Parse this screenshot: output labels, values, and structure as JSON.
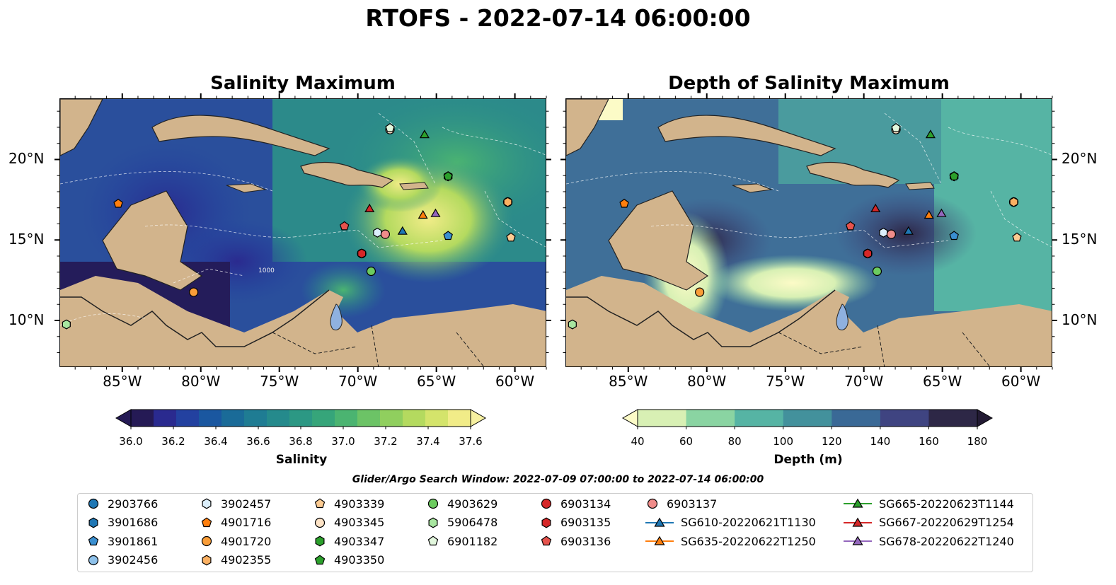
{
  "title": "RTOFS - 2022-07-14 06:00:00",
  "panels": [
    {
      "title": "Salinity Maximum"
    },
    {
      "title": "Depth of Salinity Maximum"
    }
  ],
  "axes": {
    "lon_ticks": [
      "85°W",
      "80°W",
      "75°W",
      "70°W",
      "65°W",
      "60°W"
    ],
    "lat_ticks": [
      "20°N",
      "15°N",
      "10°N"
    ],
    "contour_label": "1000"
  },
  "colorbars": {
    "salinity": {
      "label": "Salinity",
      "ticks": [
        "36.0",
        "36.2",
        "36.4",
        "36.6",
        "36.8",
        "37.0",
        "37.2",
        "37.4",
        "37.6"
      ],
      "colors": [
        "#251a55",
        "#2a2a8f",
        "#2341a0",
        "#1a57a0",
        "#1a6b98",
        "#1f7c93",
        "#258a8c",
        "#2c9884",
        "#36a57a",
        "#4bb471",
        "#6cc366",
        "#90cf5e",
        "#b4da5f",
        "#d4e46b",
        "#f1ec88"
      ],
      "extend_low": "#251a55",
      "extend_high": "#f6f0a0"
    },
    "depth": {
      "label": "Depth (m)",
      "ticks": [
        "40",
        "60",
        "80",
        "100",
        "120",
        "140",
        "160",
        "180"
      ],
      "colors": [
        "#d8f0b4",
        "#8ad4a2",
        "#56b4a4",
        "#43919c",
        "#3a6996",
        "#3f4481",
        "#2d2746"
      ],
      "extend_low": "#fcfbc7",
      "extend_high": "#221a33"
    }
  },
  "search_window": "Glider/Argo Search Window: 2022-07-09 07:00:00 to 2022-07-14 06:00:00",
  "legend": [
    {
      "label": "2903766",
      "color": "#1f77b4",
      "marker": "circle"
    },
    {
      "label": "3901686",
      "color": "#1f77b4",
      "marker": "hexagon"
    },
    {
      "label": "3901861",
      "color": "#3a8fd0",
      "marker": "pentagon"
    },
    {
      "label": "3902456",
      "color": "#8ec1ea",
      "marker": "circle"
    },
    {
      "label": "3902457",
      "color": "#dbeefb",
      "marker": "hexagon"
    },
    {
      "label": "4901716",
      "color": "#ff7f0e",
      "marker": "pentagon"
    },
    {
      "label": "4901720",
      "color": "#f99d38",
      "marker": "circle"
    },
    {
      "label": "4902355",
      "color": "#fbb062",
      "marker": "hexagon"
    },
    {
      "label": "4903339",
      "color": "#fccb92",
      "marker": "pentagon"
    },
    {
      "label": "4903345",
      "color": "#fde3c6",
      "marker": "circle"
    },
    {
      "label": "4903347",
      "color": "#2ca02c",
      "marker": "hexagon"
    },
    {
      "label": "4903350",
      "color": "#2ca02c",
      "marker": "pentagon"
    },
    {
      "label": "4903629",
      "color": "#6ccb5f",
      "marker": "circle"
    },
    {
      "label": "5906478",
      "color": "#a8e6a0",
      "marker": "hexagon"
    },
    {
      "label": "6901182",
      "color": "#e2f7dd",
      "marker": "pentagon"
    },
    {
      "label": "6903134",
      "color": "#d62728",
      "marker": "circle"
    },
    {
      "label": "6903135",
      "color": "#d62728",
      "marker": "hexagon"
    },
    {
      "label": "6903136",
      "color": "#e6534d",
      "marker": "pentagon"
    },
    {
      "label": "6903137",
      "color": "#f08c8a",
      "marker": "circle"
    },
    {
      "label": "SG610-20220621T1130",
      "color": "#1f77b4",
      "marker": "triangle"
    },
    {
      "label": "SG635-20220622T1250",
      "color": "#ff7f0e",
      "marker": "triangle"
    },
    {
      "label": "SG665-20220623T1144",
      "color": "#2ca02c",
      "marker": "triangle"
    },
    {
      "label": "SG667-20220629T1254",
      "color": "#d62728",
      "marker": "triangle"
    },
    {
      "label": "SG678-20220622T1240",
      "color": "#9467bd",
      "marker": "triangle"
    }
  ],
  "observations": [
    {
      "id": "2903766",
      "lon": -60.5,
      "lat": 17.4
    },
    {
      "id": "3901686",
      "lon": -64.3,
      "lat": 19.0
    },
    {
      "id": "3901861",
      "lon": -64.3,
      "lat": 15.3
    },
    {
      "id": "3902456",
      "lon": -60.5,
      "lat": 17.4
    },
    {
      "id": "3902457",
      "lon": -68.8,
      "lat": 15.5
    },
    {
      "id": "4901716",
      "lon": -85.3,
      "lat": 17.3
    },
    {
      "id": "4901720",
      "lon": -80.5,
      "lat": 11.8
    },
    {
      "id": "4902355",
      "lon": -60.5,
      "lat": 17.4
    },
    {
      "id": "4903339",
      "lon": -60.3,
      "lat": 15.2
    },
    {
      "id": "4903345",
      "lon": -68.0,
      "lat": 21.9
    },
    {
      "id": "4903347",
      "lon": -64.3,
      "lat": 19.0
    },
    {
      "id": "4903350",
      "lon": -64.3,
      "lat": 19.0
    },
    {
      "id": "4903629",
      "lon": -69.2,
      "lat": 13.1
    },
    {
      "id": "5906478",
      "lon": -88.6,
      "lat": 9.8
    },
    {
      "id": "6901182",
      "lon": -68.0,
      "lat": 22.0
    },
    {
      "id": "6903134",
      "lon": -69.8,
      "lat": 14.2
    },
    {
      "id": "6903135",
      "lon": -69.8,
      "lat": 14.2
    },
    {
      "id": "6903136",
      "lon": -70.9,
      "lat": 15.9
    },
    {
      "id": "6903137",
      "lon": -68.3,
      "lat": 15.4
    },
    {
      "id": "SG610-20220621T1130",
      "lon": -67.2,
      "lat": 15.6
    },
    {
      "id": "SG635-20220622T1250",
      "lon": -65.9,
      "lat": 16.6
    },
    {
      "id": "SG665-20220623T1144",
      "lon": -65.8,
      "lat": 21.6
    },
    {
      "id": "SG667-20220629T1254",
      "lon": -69.3,
      "lat": 17.0
    },
    {
      "id": "SG678-20220622T1240",
      "lon": -65.1,
      "lat": 16.7
    }
  ]
}
